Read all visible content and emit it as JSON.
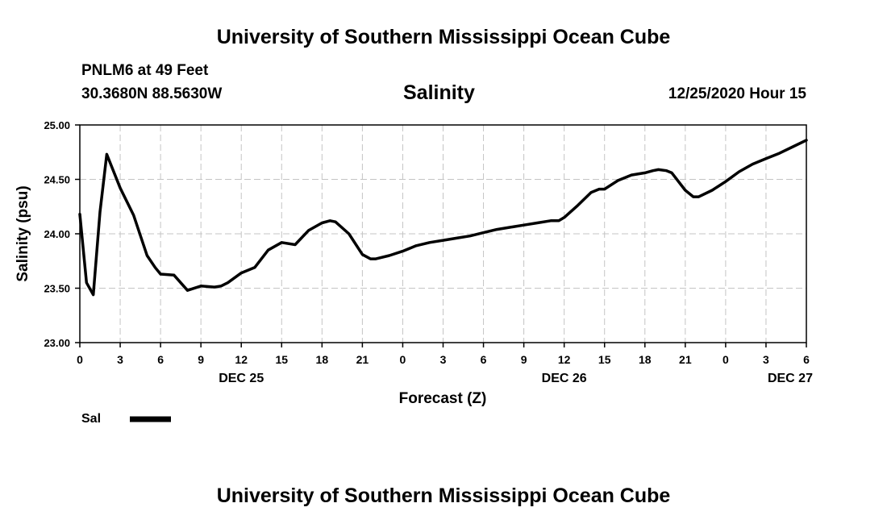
{
  "header": {
    "main_title": "University of Southern Mississippi Ocean Cube",
    "station": "PNLM6 at 49 Feet",
    "coords": "30.3680N 88.5630W",
    "variable": "Salinity",
    "datetime": "12/25/2020 Hour 15"
  },
  "footer": {
    "title": "University of Southern Mississippi Ocean Cube"
  },
  "chart_data": {
    "type": "line",
    "title": "Salinity",
    "xlabel": "Forecast (Z)",
    "ylabel": "Salinity (psu)",
    "ylim": [
      23.0,
      25.0
    ],
    "xlim": [
      0,
      54
    ],
    "x_unit": "forecast hours since 12/25/2020 00Z",
    "y_ticks": [
      "23.00",
      "23.50",
      "24.00",
      "24.50",
      "25.00"
    ],
    "x_ticks": [
      {
        "x": 0,
        "label": "0"
      },
      {
        "x": 3,
        "label": "3"
      },
      {
        "x": 6,
        "label": "6"
      },
      {
        "x": 9,
        "label": "9"
      },
      {
        "x": 12,
        "label": "12"
      },
      {
        "x": 15,
        "label": "15"
      },
      {
        "x": 18,
        "label": "18"
      },
      {
        "x": 21,
        "label": "21"
      },
      {
        "x": 24,
        "label": "0"
      },
      {
        "x": 27,
        "label": "3"
      },
      {
        "x": 30,
        "label": "6"
      },
      {
        "x": 33,
        "label": "9"
      },
      {
        "x": 36,
        "label": "12"
      },
      {
        "x": 39,
        "label": "15"
      },
      {
        "x": 42,
        "label": "18"
      },
      {
        "x": 45,
        "label": "21"
      },
      {
        "x": 48,
        "label": "0"
      },
      {
        "x": 51,
        "label": "3"
      },
      {
        "x": 54,
        "label": "6"
      }
    ],
    "date_labels": [
      {
        "x": 12,
        "label": "DEC 25"
      },
      {
        "x": 36,
        "label": "DEC 26"
      },
      {
        "x": 52.8,
        "label": "DEC 27"
      }
    ],
    "grid": true,
    "legend": {
      "position": "bottom-left",
      "entries": [
        {
          "name": "Sal",
          "color": "#000000"
        }
      ]
    },
    "series": [
      {
        "name": "Sal",
        "color": "#000000",
        "x": [
          0,
          0.5,
          1,
          1.5,
          2,
          3,
          4,
          5,
          5.6,
          6,
          7,
          8,
          9,
          10,
          10.5,
          11,
          12,
          13,
          14,
          15,
          16,
          17,
          18,
          18.6,
          19,
          20,
          21,
          21.6,
          22,
          23,
          24,
          25,
          26,
          27,
          28,
          29,
          30,
          31,
          32,
          33,
          34,
          35,
          35.6,
          36,
          37,
          38,
          38.6,
          39,
          40,
          41,
          42,
          42.6,
          43,
          43.6,
          44,
          45,
          45.6,
          46,
          47,
          48,
          49,
          50,
          51,
          52,
          53,
          54
        ],
        "values": [
          24.18,
          23.55,
          23.44,
          24.2,
          24.73,
          24.42,
          24.17,
          23.8,
          23.69,
          23.63,
          23.62,
          23.48,
          23.52,
          23.51,
          23.52,
          23.55,
          23.64,
          23.69,
          23.85,
          23.92,
          23.9,
          24.03,
          24.1,
          24.12,
          24.11,
          24.0,
          23.81,
          23.77,
          23.77,
          23.8,
          23.84,
          23.89,
          23.92,
          23.94,
          23.96,
          23.98,
          24.01,
          24.04,
          24.06,
          24.08,
          24.1,
          24.12,
          24.12,
          24.15,
          24.26,
          24.38,
          24.41,
          24.41,
          24.49,
          24.54,
          24.56,
          24.58,
          24.59,
          24.58,
          24.56,
          24.4,
          24.34,
          24.34,
          24.4,
          24.48,
          24.57,
          24.64,
          24.69,
          24.74,
          24.8,
          24.86
        ]
      }
    ]
  }
}
